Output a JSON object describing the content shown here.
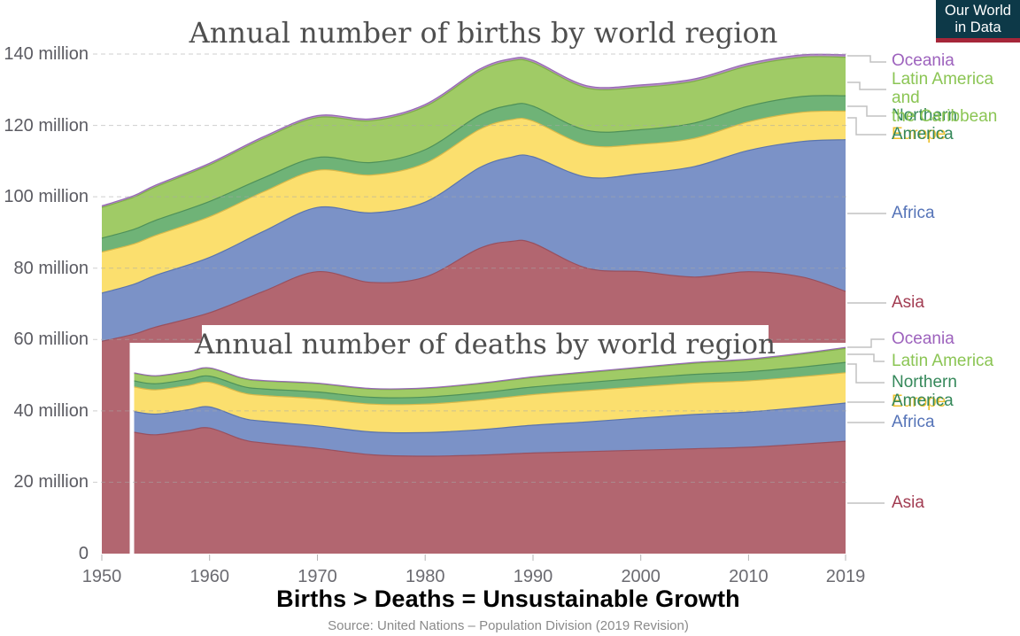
{
  "logo": {
    "line1": "Our World",
    "line2": "in Data",
    "bg_color": "#0d3948",
    "bar_color": "#a52639",
    "text_color": "#ffffff"
  },
  "caption": "Births > Deaths = Unsustainable Growth",
  "source": "Source: United Nations – Population Division (2019 Revision)",
  "axis": {
    "y_ticks": [
      {
        "value": 140,
        "label": "140 million"
      },
      {
        "value": 120,
        "label": "120 million"
      },
      {
        "value": 100,
        "label": "100 million"
      },
      {
        "value": 80,
        "label": "80 million"
      },
      {
        "value": 60,
        "label": "60 million"
      },
      {
        "value": 40,
        "label": "40 million"
      },
      {
        "value": 20,
        "label": "20 million"
      },
      {
        "value": 0,
        "label": "0"
      }
    ],
    "x_ticks": [
      {
        "value": 1950,
        "label": "1950"
      },
      {
        "value": 1960,
        "label": "1960"
      },
      {
        "value": 1970,
        "label": "1970"
      },
      {
        "value": 1980,
        "label": "1980"
      },
      {
        "value": 1990,
        "label": "1990"
      },
      {
        "value": 2000,
        "label": "2000"
      },
      {
        "value": 2010,
        "label": "2010"
      },
      {
        "value": 2019,
        "label": "2019"
      }
    ],
    "grid": "dashed"
  },
  "chart_data": [
    {
      "id": "births",
      "type": "area",
      "stacked": true,
      "title": "Annual number of births by world region",
      "ylim": [
        0,
        140
      ],
      "xlim": [
        1950,
        2019
      ],
      "legend_position": "right",
      "x": [
        1950,
        1953,
        1955,
        1960,
        1965,
        1970,
        1975,
        1980,
        1985,
        1988,
        1990,
        1995,
        2000,
        2005,
        2010,
        2015,
        2019
      ],
      "series": [
        {
          "id": "asia",
          "label": "Asia",
          "fill": "#b26670",
          "stroke": "#99505e",
          "label_color": "#a23c52",
          "values": [
            59.5,
            61.5,
            63.5,
            67.5,
            73.5,
            79,
            76,
            77.5,
            85.5,
            87.5,
            87,
            80,
            79,
            77.5,
            79,
            77.5,
            73.5
          ]
        },
        {
          "id": "africa",
          "label": "Africa",
          "fill": "#7b92c7",
          "stroke": "#5a74ad",
          "label_color": "#5674b8",
          "values": [
            13.5,
            14,
            14.5,
            15.5,
            16.8,
            18,
            19.5,
            21,
            22.6,
            23.6,
            24.2,
            25.5,
            27.5,
            31,
            34,
            38,
            42.5
          ]
        },
        {
          "id": "europe",
          "label": "Europe",
          "fill": "#fbdf6e",
          "stroke": "#d9b94a",
          "label_color": "#eec02c",
          "values": [
            11.5,
            11.3,
            11.2,
            11.4,
            11.1,
            10.4,
            10.6,
            10.9,
            10.7,
            10.5,
            10,
            9,
            8.2,
            7.9,
            8,
            8.2,
            8
          ]
        },
        {
          "id": "namerica",
          "label": "Northern America",
          "fill": "#6fb377",
          "stroke": "#4f9159",
          "label_color": "#35885a",
          "values": [
            3.9,
            4.1,
            4.2,
            4.3,
            3.9,
            3.6,
            3.5,
            3.8,
            4,
            4.1,
            4.2,
            4.1,
            4.1,
            4.3,
            4.4,
            4.4,
            4.3
          ]
        },
        {
          "id": "latam",
          "label": "Latin America and\nthe Caribbean",
          "fill": "#a0cb66",
          "stroke": "#7fae49",
          "label_color": "#8bc554",
          "values": [
            8.6,
            9,
            9.4,
            10.2,
            11,
            11.2,
            11.7,
            12.1,
            12.3,
            12.4,
            12.2,
            11.9,
            11.9,
            11.7,
            11.3,
            11,
            10.8
          ]
        },
        {
          "id": "oceania",
          "label": "Oceania",
          "fill": "#b78cc7",
          "stroke": "#9669b4",
          "label_color": "#9d62bd",
          "values": [
            0.45,
            0.47,
            0.48,
            0.5,
            0.53,
            0.55,
            0.56,
            0.58,
            0.6,
            0.6,
            0.61,
            0.62,
            0.64,
            0.65,
            0.66,
            0.67,
            0.68
          ]
        }
      ]
    },
    {
      "id": "deaths",
      "type": "area",
      "stacked": true,
      "title": "Annual number of deaths by world region",
      "ylim": [
        0,
        140
      ],
      "xlim": [
        1953,
        2019
      ],
      "legend_position": "right",
      "x": [
        1953,
        1955,
        1958,
        1960,
        1963,
        1965,
        1970,
        1975,
        1980,
        1985,
        1990,
        1995,
        2000,
        2005,
        2010,
        2015,
        2019
      ],
      "series": [
        {
          "id": "asia",
          "label": "Asia",
          "fill": "#b26670",
          "stroke": "#99505e",
          "label_color": "#a23c52",
          "values": [
            34,
            33.3,
            34.5,
            35.2,
            32,
            31,
            29.5,
            27.7,
            27.3,
            27.6,
            28.2,
            28.6,
            29,
            29.4,
            29.8,
            30.7,
            31.5
          ]
        },
        {
          "id": "africa",
          "label": "Africa",
          "fill": "#7b92c7",
          "stroke": "#5a74ad",
          "label_color": "#5674b8",
          "values": [
            5.8,
            5.8,
            5.8,
            5.9,
            6,
            6.1,
            6.3,
            6.4,
            6.6,
            7.1,
            7.8,
            8.3,
            9,
            9.6,
            9.9,
            10.3,
            10.7
          ]
        },
        {
          "id": "europe",
          "label": "Europe",
          "fill": "#fbdf6e",
          "stroke": "#d9b94a",
          "label_color": "#eec02c",
          "values": [
            6.9,
            6.8,
            6.8,
            6.9,
            7.1,
            7.2,
            7.6,
            7.8,
            8,
            8.3,
            8.55,
            8.8,
            8.8,
            8.8,
            8.7,
            8.6,
            8.5
          ]
        },
        {
          "id": "namerica",
          "label": "Northern America",
          "fill": "#6fb377",
          "stroke": "#4f9159",
          "label_color": "#35885a",
          "values": [
            1.7,
            1.7,
            1.7,
            1.75,
            1.8,
            1.85,
            1.9,
            1.9,
            1.95,
            2.05,
            2.15,
            2.25,
            2.35,
            2.45,
            2.55,
            2.7,
            2.9
          ]
        },
        {
          "id": "latam",
          "label": "Latin America",
          "fill": "#a0cb66",
          "stroke": "#7fae49",
          "label_color": "#8bc554",
          "values": [
            2.1,
            2.1,
            2.1,
            2.15,
            2.2,
            2.2,
            2.3,
            2.3,
            2.4,
            2.5,
            2.65,
            2.75,
            2.9,
            3.1,
            3.3,
            3.6,
            3.9
          ]
        },
        {
          "id": "oceania",
          "label": "Oceania",
          "fill": "#b78cc7",
          "stroke": "#9669b4",
          "label_color": "#9d62bd",
          "values": [
            0.15,
            0.15,
            0.15,
            0.15,
            0.15,
            0.16,
            0.16,
            0.17,
            0.17,
            0.18,
            0.19,
            0.2,
            0.21,
            0.23,
            0.25,
            0.27,
            0.29
          ]
        }
      ]
    }
  ]
}
